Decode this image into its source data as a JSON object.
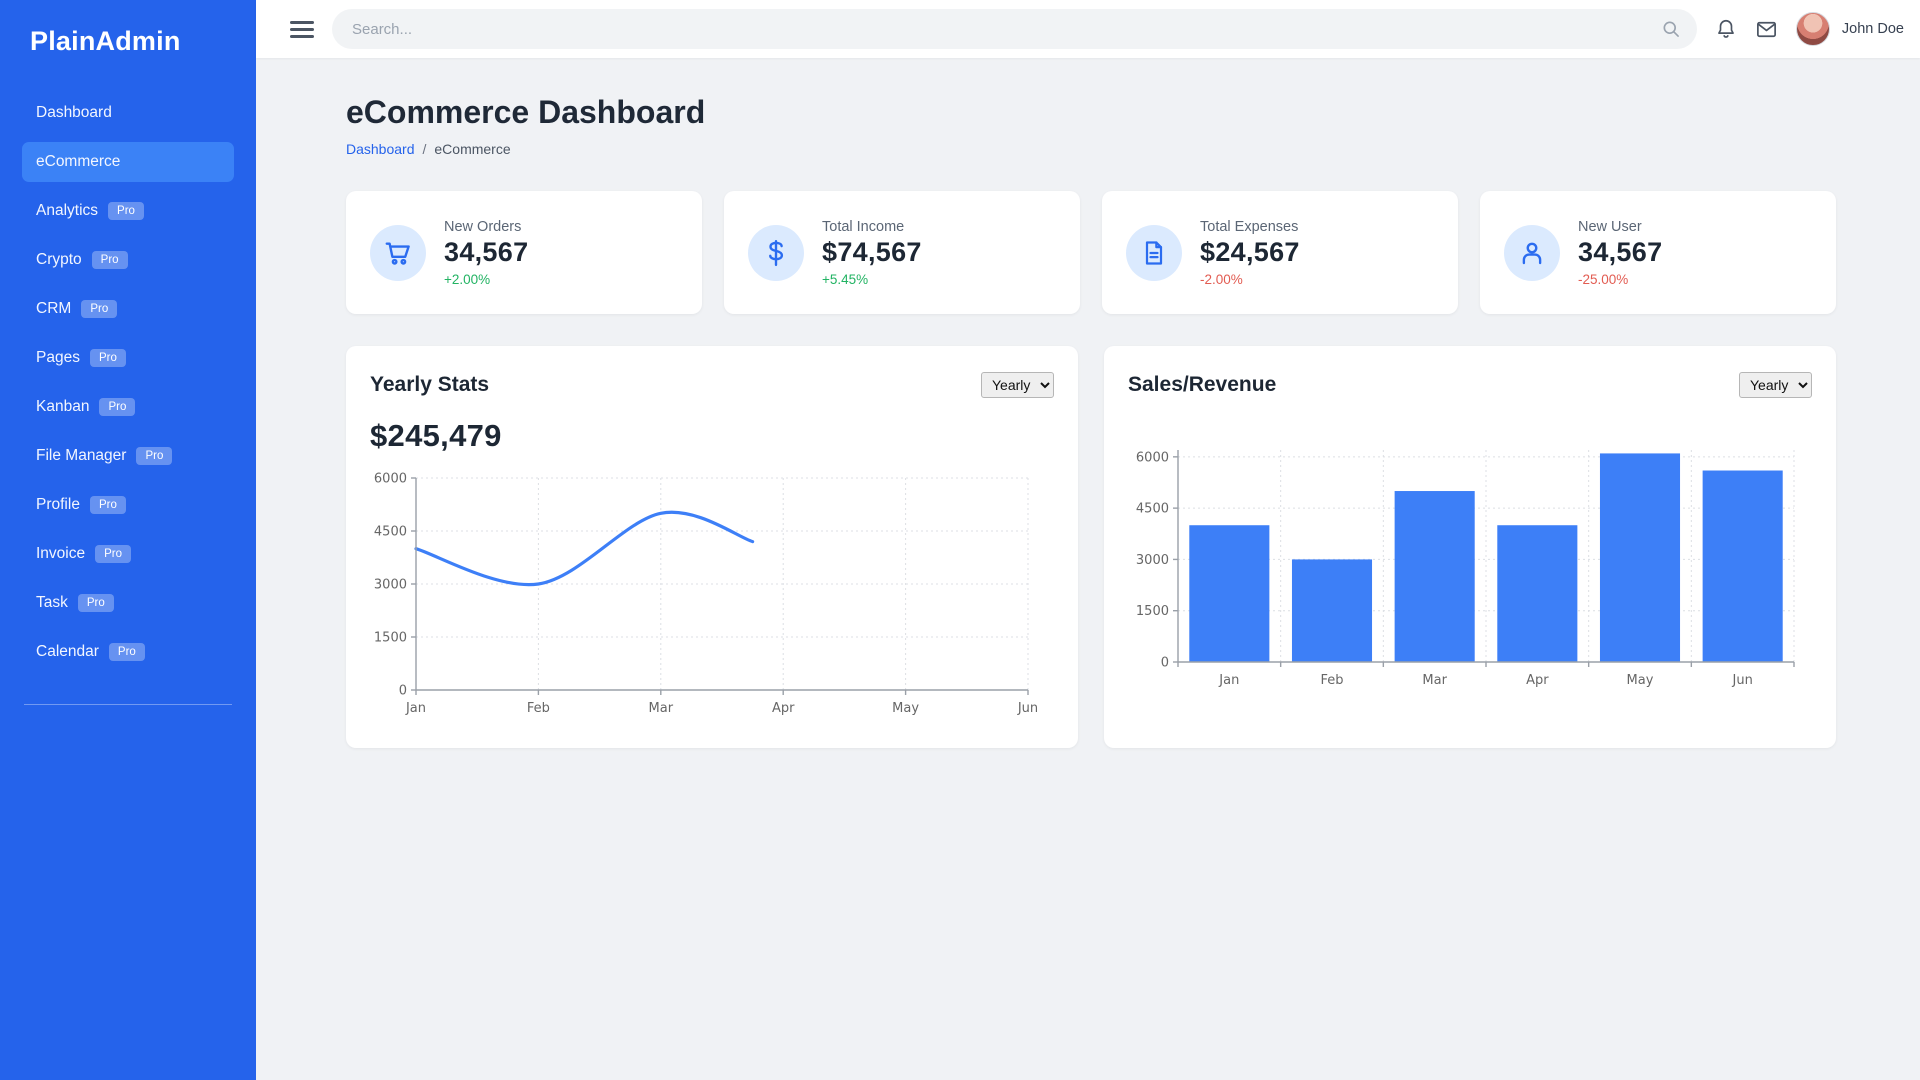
{
  "app": {
    "brand": "PlainAdmin"
  },
  "sidebar": {
    "pro_badge_label": "Pro",
    "items": [
      {
        "label": "Dashboard",
        "pro": false,
        "active": false
      },
      {
        "label": "eCommerce",
        "pro": false,
        "active": true
      },
      {
        "label": "Analytics",
        "pro": true,
        "active": false
      },
      {
        "label": "Crypto",
        "pro": true,
        "active": false
      },
      {
        "label": "CRM",
        "pro": true,
        "active": false
      },
      {
        "label": "Pages",
        "pro": true,
        "active": false
      },
      {
        "label": "Kanban",
        "pro": true,
        "active": false
      },
      {
        "label": "File Manager",
        "pro": true,
        "active": false
      },
      {
        "label": "Profile",
        "pro": true,
        "active": false
      },
      {
        "label": "Invoice",
        "pro": true,
        "active": false
      },
      {
        "label": "Task",
        "pro": true,
        "active": false
      },
      {
        "label": "Calendar",
        "pro": true,
        "active": false
      }
    ]
  },
  "topbar": {
    "search_placeholder": "Search...",
    "user_name": "John Doe"
  },
  "page": {
    "title": "eCommerce Dashboard",
    "breadcrumb": {
      "link": "Dashboard",
      "separator": "/",
      "current": "eCommerce"
    }
  },
  "stats": [
    {
      "label": "New Orders",
      "value": "34,567",
      "change": "+2.00%",
      "trend": "up",
      "icon": "cart-icon"
    },
    {
      "label": "Total Income",
      "value": "$74,567",
      "change": "+5.45%",
      "trend": "up",
      "icon": "dollar-icon"
    },
    {
      "label": "Total Expenses",
      "value": "$24,567",
      "change": "-2.00%",
      "trend": "down",
      "icon": "document-icon"
    },
    {
      "label": "New User",
      "value": "34,567",
      "change": "-25.00%",
      "trend": "down",
      "icon": "user-icon"
    }
  ],
  "charts": {
    "yearly_stats": {
      "title": "Yearly Stats",
      "amount": "$245,479",
      "select_value": "Yearly"
    },
    "sales_revenue": {
      "title": "Sales/Revenue",
      "select_value": "Yearly"
    }
  },
  "chart_data": [
    {
      "type": "line",
      "title": "Yearly Stats",
      "categories": [
        "Jan",
        "Feb",
        "Mar",
        "Apr",
        "May",
        "Jun"
      ],
      "x": [
        0,
        1,
        2,
        2.75
      ],
      "values": [
        4000,
        3000,
        5000,
        4200
      ],
      "yticks": [
        0,
        1500,
        3000,
        4500,
        6000
      ],
      "ylim": [
        0,
        6000
      ],
      "line_color": "#3d7ff7",
      "grid": true,
      "legend": "none"
    },
    {
      "type": "bar",
      "title": "Sales/Revenue",
      "categories": [
        "Jan",
        "Feb",
        "Mar",
        "Apr",
        "May",
        "Jun"
      ],
      "values": [
        4000,
        3000,
        5000,
        4000,
        6100,
        5600
      ],
      "yticks": [
        0,
        1500,
        3000,
        4500,
        6000
      ],
      "ylim": [
        0,
        6200
      ],
      "bar_color": "#3d7ff7",
      "grid": true,
      "legend": "none"
    }
  ],
  "colors": {
    "sidebar": "#2563eb",
    "sidebar_active": "#3b82f6",
    "chart_blue": "#3d7ff7",
    "positive_green": "#22b363",
    "negative_red": "#e25c52",
    "icon_circle": "#dbeafe"
  }
}
